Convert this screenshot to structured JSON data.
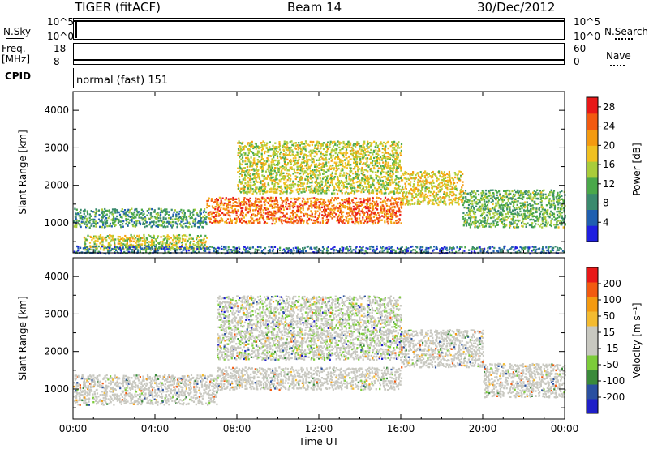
{
  "header": {
    "station": "TIGER (fitACF)",
    "beam": "Beam 14",
    "date": "30/Dec/2012"
  },
  "status": {
    "nsky_label": "N.Sky",
    "nsky_ticks": [
      "10^5",
      "10^0"
    ],
    "nsearch_label": "N.Search",
    "nsearch_ticks": [
      "10^5",
      "10^0"
    ],
    "freq_label": "Freq.",
    "freq_unit": "[MHz]",
    "freq_ticks": [
      "18",
      "8"
    ],
    "nave_label": "Nave",
    "nave_ticks": [
      "60",
      "0"
    ],
    "cpid_label": "CPID",
    "cpid_value": "normal (fast) 151"
  },
  "colors": {
    "power": [
      "#1f1fe0",
      "#1f5fb0",
      "#3a8a6e",
      "#4aa84a",
      "#a9cc3a",
      "#f0c020",
      "#f49a10",
      "#f25a10",
      "#e81818"
    ],
    "velocity": [
      "#e81818",
      "#f25a10",
      "#f49a10",
      "#f4bb30",
      "#c8c8c0",
      "#c8c8c0",
      "#7ccc3a",
      "#3a8a3a",
      "#2a50a0",
      "#1f1fc8"
    ]
  },
  "chart_data": [
    {
      "type": "heatmap",
      "title": "",
      "xlabel": "",
      "ylabel": "Slant Range [km]",
      "xlim": [
        "00:00",
        "00:00"
      ],
      "ylim": [
        200,
        4500
      ],
      "x_ticks": [
        "00:00",
        "04:00",
        "08:00",
        "12:00",
        "16:00",
        "20:00",
        "00:00"
      ],
      "y_ticks": [
        "1000",
        "2000",
        "3000",
        "4000"
      ],
      "colorbar": {
        "label": "Power [dB]",
        "ticks": [
          "4",
          "8",
          "12",
          "16",
          "20",
          "24",
          "28"
        ],
        "range": [
          0,
          30
        ]
      },
      "bands": [
        {
          "x_start_h": 0.0,
          "x_end_h": 6.5,
          "range_start_km": 900,
          "range_end_km": 1400,
          "power_db": 10
        },
        {
          "x_start_h": 0.5,
          "x_end_h": 6.5,
          "range_start_km": 300,
          "range_end_km": 700,
          "power_db": 16
        },
        {
          "x_start_h": 6.5,
          "x_end_h": 16.0,
          "range_start_km": 1000,
          "range_end_km": 1700,
          "power_db": 24
        },
        {
          "x_start_h": 8.0,
          "x_end_h": 16.0,
          "range_start_km": 1800,
          "range_end_km": 3200,
          "power_db": 16
        },
        {
          "x_start_h": 16.0,
          "x_end_h": 19.0,
          "range_start_km": 1500,
          "range_end_km": 2400,
          "power_db": 18
        },
        {
          "x_start_h": 19.0,
          "x_end_h": 24.0,
          "range_start_km": 900,
          "range_end_km": 1900,
          "power_db": 12
        },
        {
          "x_start_h": 0.0,
          "x_end_h": 24.0,
          "range_start_km": 200,
          "range_end_km": 400,
          "power_db": 6
        }
      ]
    },
    {
      "type": "heatmap",
      "title": "",
      "xlabel": "Time UT",
      "ylabel": "Slant Range [km]",
      "xlim": [
        "00:00",
        "00:00"
      ],
      "ylim": [
        200,
        4500
      ],
      "x_ticks": [
        "00:00",
        "04:00",
        "08:00",
        "12:00",
        "16:00",
        "20:00",
        "00:00"
      ],
      "y_ticks": [
        "1000",
        "2000",
        "3000",
        "4000"
      ],
      "colorbar": {
        "label": "Velocity [m s⁻¹]",
        "ticks": [
          "200",
          "100",
          "50",
          "15",
          "-15",
          "-50",
          "-100",
          "-200"
        ],
        "range": [
          -250,
          250
        ]
      },
      "bands": [
        {
          "x_start_h": 0.0,
          "x_end_h": 7.0,
          "range_start_km": 600,
          "range_end_km": 1400,
          "velocity": 0
        },
        {
          "x_start_h": 7.0,
          "x_end_h": 16.0,
          "range_start_km": 1000,
          "range_end_km": 1600,
          "velocity": 0
        },
        {
          "x_start_h": 7.0,
          "x_end_h": 16.0,
          "range_start_km": 1800,
          "range_end_km": 3500,
          "velocity": -40
        },
        {
          "x_start_h": 16.0,
          "x_end_h": 20.0,
          "range_start_km": 1600,
          "range_end_km": 2600,
          "velocity": 0
        },
        {
          "x_start_h": 20.0,
          "x_end_h": 24.0,
          "range_start_km": 800,
          "range_end_km": 1700,
          "velocity": 0
        }
      ]
    }
  ]
}
